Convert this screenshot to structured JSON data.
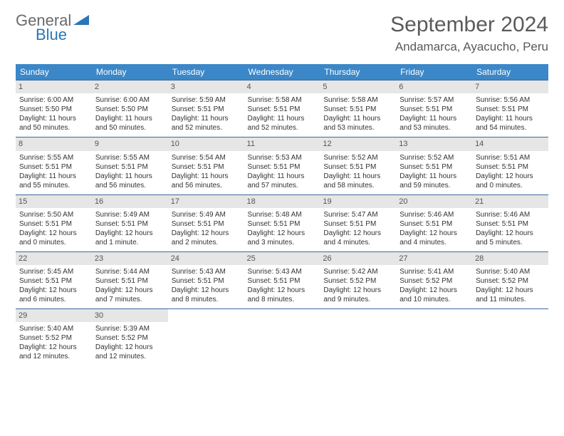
{
  "logo": {
    "line1": "General",
    "line2": "Blue"
  },
  "title": "September 2024",
  "location": "Andamarca, Ayacucho, Peru",
  "colors": {
    "header_bg": "#3b87c8",
    "header_text": "#ffffff",
    "row_border": "#3b6a9a",
    "daynum_bg": "#e6e6e6",
    "text": "#333333",
    "logo_gray": "#6a6a6a",
    "logo_blue": "#2a76b8"
  },
  "weekdays": [
    "Sunday",
    "Monday",
    "Tuesday",
    "Wednesday",
    "Thursday",
    "Friday",
    "Saturday"
  ],
  "layout": {
    "start_offset": 0,
    "days_in_month": 30
  },
  "days": [
    {
      "n": 1,
      "sunrise": "6:00 AM",
      "sunset": "5:50 PM",
      "dl": "11 hours and 50 minutes"
    },
    {
      "n": 2,
      "sunrise": "6:00 AM",
      "sunset": "5:50 PM",
      "dl": "11 hours and 50 minutes"
    },
    {
      "n": 3,
      "sunrise": "5:59 AM",
      "sunset": "5:51 PM",
      "dl": "11 hours and 52 minutes"
    },
    {
      "n": 4,
      "sunrise": "5:58 AM",
      "sunset": "5:51 PM",
      "dl": "11 hours and 52 minutes"
    },
    {
      "n": 5,
      "sunrise": "5:58 AM",
      "sunset": "5:51 PM",
      "dl": "11 hours and 53 minutes"
    },
    {
      "n": 6,
      "sunrise": "5:57 AM",
      "sunset": "5:51 PM",
      "dl": "11 hours and 53 minutes"
    },
    {
      "n": 7,
      "sunrise": "5:56 AM",
      "sunset": "5:51 PM",
      "dl": "11 hours and 54 minutes"
    },
    {
      "n": 8,
      "sunrise": "5:55 AM",
      "sunset": "5:51 PM",
      "dl": "11 hours and 55 minutes"
    },
    {
      "n": 9,
      "sunrise": "5:55 AM",
      "sunset": "5:51 PM",
      "dl": "11 hours and 56 minutes"
    },
    {
      "n": 10,
      "sunrise": "5:54 AM",
      "sunset": "5:51 PM",
      "dl": "11 hours and 56 minutes"
    },
    {
      "n": 11,
      "sunrise": "5:53 AM",
      "sunset": "5:51 PM",
      "dl": "11 hours and 57 minutes"
    },
    {
      "n": 12,
      "sunrise": "5:52 AM",
      "sunset": "5:51 PM",
      "dl": "11 hours and 58 minutes"
    },
    {
      "n": 13,
      "sunrise": "5:52 AM",
      "sunset": "5:51 PM",
      "dl": "11 hours and 59 minutes"
    },
    {
      "n": 14,
      "sunrise": "5:51 AM",
      "sunset": "5:51 PM",
      "dl": "12 hours and 0 minutes"
    },
    {
      "n": 15,
      "sunrise": "5:50 AM",
      "sunset": "5:51 PM",
      "dl": "12 hours and 0 minutes"
    },
    {
      "n": 16,
      "sunrise": "5:49 AM",
      "sunset": "5:51 PM",
      "dl": "12 hours and 1 minute"
    },
    {
      "n": 17,
      "sunrise": "5:49 AM",
      "sunset": "5:51 PM",
      "dl": "12 hours and 2 minutes"
    },
    {
      "n": 18,
      "sunrise": "5:48 AM",
      "sunset": "5:51 PM",
      "dl": "12 hours and 3 minutes"
    },
    {
      "n": 19,
      "sunrise": "5:47 AM",
      "sunset": "5:51 PM",
      "dl": "12 hours and 4 minutes"
    },
    {
      "n": 20,
      "sunrise": "5:46 AM",
      "sunset": "5:51 PM",
      "dl": "12 hours and 4 minutes"
    },
    {
      "n": 21,
      "sunrise": "5:46 AM",
      "sunset": "5:51 PM",
      "dl": "12 hours and 5 minutes"
    },
    {
      "n": 22,
      "sunrise": "5:45 AM",
      "sunset": "5:51 PM",
      "dl": "12 hours and 6 minutes"
    },
    {
      "n": 23,
      "sunrise": "5:44 AM",
      "sunset": "5:51 PM",
      "dl": "12 hours and 7 minutes"
    },
    {
      "n": 24,
      "sunrise": "5:43 AM",
      "sunset": "5:51 PM",
      "dl": "12 hours and 8 minutes"
    },
    {
      "n": 25,
      "sunrise": "5:43 AM",
      "sunset": "5:51 PM",
      "dl": "12 hours and 8 minutes"
    },
    {
      "n": 26,
      "sunrise": "5:42 AM",
      "sunset": "5:52 PM",
      "dl": "12 hours and 9 minutes"
    },
    {
      "n": 27,
      "sunrise": "5:41 AM",
      "sunset": "5:52 PM",
      "dl": "12 hours and 10 minutes"
    },
    {
      "n": 28,
      "sunrise": "5:40 AM",
      "sunset": "5:52 PM",
      "dl": "12 hours and 11 minutes"
    },
    {
      "n": 29,
      "sunrise": "5:40 AM",
      "sunset": "5:52 PM",
      "dl": "12 hours and 12 minutes"
    },
    {
      "n": 30,
      "sunrise": "5:39 AM",
      "sunset": "5:52 PM",
      "dl": "12 hours and 12 minutes"
    }
  ],
  "labels": {
    "sunrise": "Sunrise:",
    "sunset": "Sunset:",
    "daylight": "Daylight:"
  }
}
